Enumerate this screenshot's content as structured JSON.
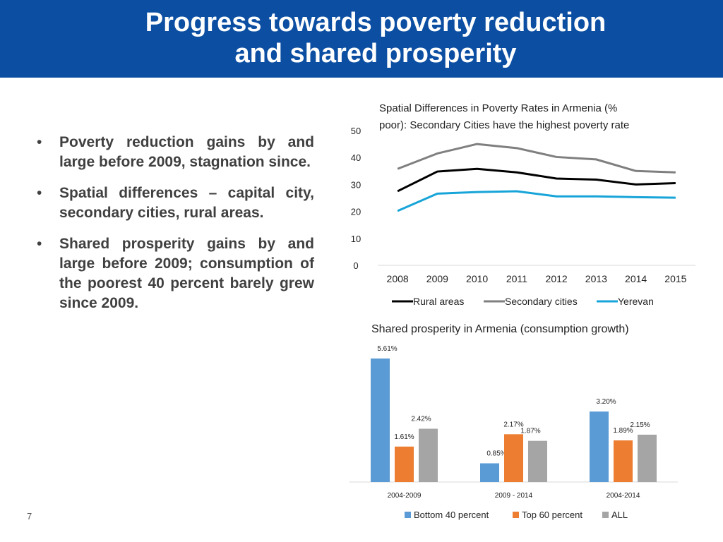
{
  "header": {
    "title_line1": "Progress towards poverty reduction",
    "title_line2": "and shared prosperity"
  },
  "bullets": [
    "Poverty reduction gains by and large before 2009, stagnation since.",
    "Spatial differences – capital city, secondary cities, rural areas.",
    "Shared prosperity gains by and large before  2009; consumption of the poorest 40 percent barely grew since 2009."
  ],
  "footer": {
    "page_number": "7"
  },
  "colors": {
    "header_bg": "#0b4ea2",
    "rural": "#000000",
    "secondary": "#7f7f7f",
    "yerevan": "#17a4d8",
    "bottom40": "#5b9bd5",
    "top60": "#ed7d31",
    "all": "#a5a5a5"
  },
  "chart_data": [
    {
      "type": "line",
      "title_line1": "Spatial Differences in Poverty Rates in Armenia (%",
      "title_line2": "poor): Secondary Cities have the highest poverty rate",
      "x": [
        "2008",
        "2009",
        "2010",
        "2011",
        "2012",
        "2013",
        "2014",
        "2015"
      ],
      "ylim": [
        0,
        50
      ],
      "yticks": [
        "0",
        "10",
        "20",
        "30",
        "40",
        "50"
      ],
      "series": [
        {
          "name": "Rural areas",
          "values": [
            27.5,
            34.8,
            35.8,
            34.5,
            32.2,
            31.8,
            30.0,
            30.5
          ]
        },
        {
          "name": "Secondary cities",
          "values": [
            35.8,
            41.5,
            45.0,
            43.5,
            40.2,
            39.3,
            35.0,
            34.5
          ]
        },
        {
          "name": "Yerevan",
          "values": [
            20.2,
            26.6,
            27.2,
            27.5,
            25.6,
            25.6,
            25.3,
            25.1
          ]
        }
      ]
    },
    {
      "type": "bar",
      "title": "Shared prosperity in Armenia (consumption growth)",
      "categories": [
        "2004-2009",
        "2009 - 2014",
        "2004-2014"
      ],
      "ylim": [
        0,
        5.61
      ],
      "series": [
        {
          "name": "Bottom 40 percent",
          "values": [
            5.61,
            0.85,
            3.2
          ],
          "labels": [
            "5.61%",
            "0.85%",
            "3.20%"
          ]
        },
        {
          "name": "Top 60 percent",
          "values": [
            1.61,
            2.17,
            1.89
          ],
          "labels": [
            "1.61%",
            "2.17%",
            "1.89%"
          ]
        },
        {
          "name": "ALL",
          "values": [
            2.42,
            1.87,
            2.15
          ],
          "labels": [
            "2.42%",
            "1.87%",
            "2.15%"
          ]
        }
      ]
    }
  ]
}
